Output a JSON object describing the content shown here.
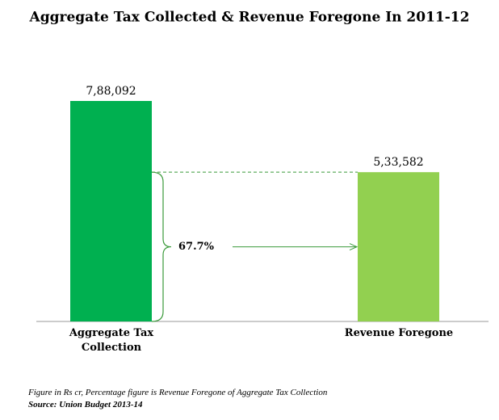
{
  "chart_data": {
    "type": "bar",
    "title": "Aggregate Tax Collected & Revenue Foregone In 2011-12",
    "categories": [
      "Aggregate Tax Collection",
      "Revenue Foregone"
    ],
    "values": [
      788092,
      533582
    ],
    "value_labels": [
      "7,88,092",
      "5,33,582"
    ],
    "colors": [
      "#00b050",
      "#92d050"
    ],
    "annotation": "67.7%",
    "notes": [
      "Figure in Rs cr, Percentage figure is Revenue Foregone  of Aggregate Tax Collection",
      "Source: Union Budget 2013-14"
    ]
  }
}
